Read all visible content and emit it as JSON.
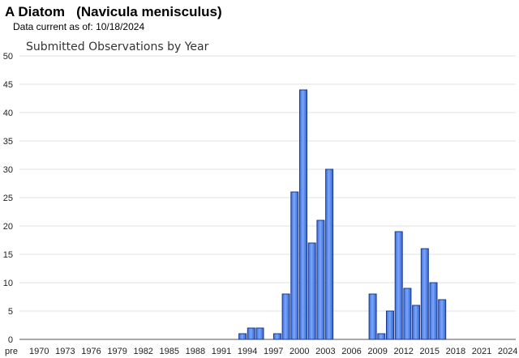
{
  "header": {
    "common_name": "A Diatom",
    "scientific_name": "(Navicula menisculus)",
    "data_current_label": "Data current as of:",
    "data_current_date": "10/18/2024"
  },
  "chart_data": {
    "type": "bar",
    "title": "Submitted Observations by Year",
    "xlabel": "",
    "ylabel": "",
    "ylim": [
      0,
      50
    ],
    "yticks": [
      0,
      5,
      10,
      15,
      20,
      25,
      30,
      35,
      40,
      45,
      50
    ],
    "grid": true,
    "legend": "none",
    "bar_color": "#4a7fe0",
    "bar_edge_color": "#1a3a8a",
    "categories": [
      "pre 1970",
      "1970",
      "1971",
      "1972",
      "1973",
      "1974",
      "1975",
      "1976",
      "1977",
      "1978",
      "1979",
      "1980",
      "1981",
      "1982",
      "1983",
      "1984",
      "1985",
      "1986",
      "1987",
      "1988",
      "1989",
      "1990",
      "1991",
      "1992",
      "1993",
      "1994",
      "1995",
      "1996",
      "1997",
      "1998",
      "1999",
      "2000",
      "2001",
      "2002",
      "2003",
      "2004",
      "2005",
      "2006",
      "2007",
      "2008",
      "2009",
      "2010",
      "2011",
      "2012",
      "2013",
      "2014",
      "2015",
      "2016",
      "2017",
      "2018",
      "2019",
      "2020",
      "2021",
      "2022",
      "2023",
      "2024"
    ],
    "tick_labels": [
      "pre",
      "1970",
      "1973",
      "1976",
      "1979",
      "1982",
      "1985",
      "1988",
      "1991",
      "1994",
      "1997",
      "2000",
      "2003",
      "2006",
      "2009",
      "2012",
      "2015",
      "2018",
      "2021",
      "2024"
    ],
    "values": [
      0,
      0,
      0,
      0,
      0,
      0,
      0,
      0,
      0,
      0,
      0,
      0,
      0,
      0,
      0,
      0,
      0,
      0,
      0,
      0,
      0,
      0,
      0,
      0,
      0,
      1,
      2,
      2,
      0,
      1,
      8,
      26,
      44,
      17,
      21,
      30,
      0,
      0,
      0,
      0,
      8,
      1,
      5,
      19,
      9,
      6,
      16,
      10,
      7,
      0,
      0,
      0,
      0,
      0,
      0,
      0
    ]
  }
}
